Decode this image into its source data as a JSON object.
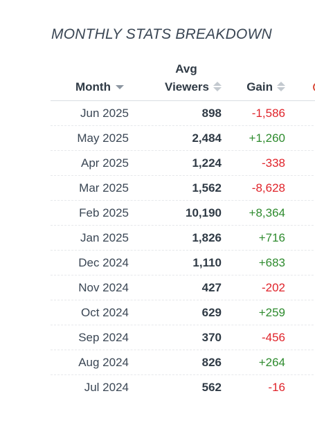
{
  "title": "MONTHLY STATS BREAKDOWN",
  "columns": {
    "month": "Month",
    "avg_line1": "Avg",
    "avg_line2": "Viewers",
    "gain": "Gain"
  },
  "colors": {
    "positive": "#2e8b2e",
    "negative": "#e0232a"
  },
  "rows": [
    {
      "month": "Jun 2025",
      "viewers": "898",
      "gain": "-1,586",
      "sign": "neg"
    },
    {
      "month": "May 2025",
      "viewers": "2,484",
      "gain": "+1,260",
      "sign": "pos"
    },
    {
      "month": "Apr 2025",
      "viewers": "1,224",
      "gain": "-338",
      "sign": "neg"
    },
    {
      "month": "Mar 2025",
      "viewers": "1,562",
      "gain": "-8,628",
      "sign": "neg"
    },
    {
      "month": "Feb 2025",
      "viewers": "10,190",
      "gain": "+8,364",
      "sign": "pos"
    },
    {
      "month": "Jan 2025",
      "viewers": "1,826",
      "gain": "+716",
      "sign": "pos"
    },
    {
      "month": "Dec 2024",
      "viewers": "1,110",
      "gain": "+683",
      "sign": "pos"
    },
    {
      "month": "Nov 2024",
      "viewers": "427",
      "gain": "-202",
      "sign": "neg"
    },
    {
      "month": "Oct 2024",
      "viewers": "629",
      "gain": "+259",
      "sign": "pos"
    },
    {
      "month": "Sep 2024",
      "viewers": "370",
      "gain": "-456",
      "sign": "neg"
    },
    {
      "month": "Aug 2024",
      "viewers": "826",
      "gain": "+264",
      "sign": "pos"
    },
    {
      "month": "Jul 2024",
      "viewers": "562",
      "gain": "-16",
      "sign": "neg"
    }
  ]
}
